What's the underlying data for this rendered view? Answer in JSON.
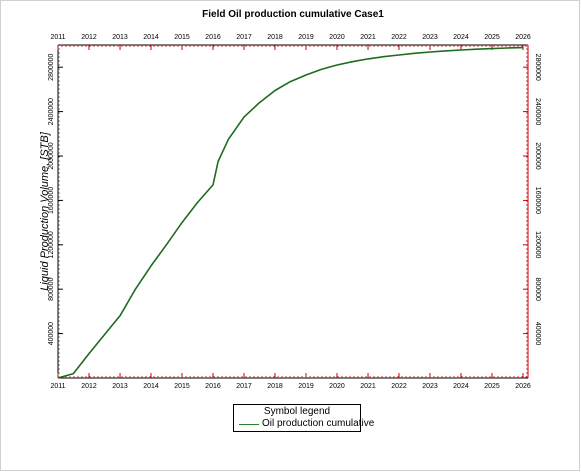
{
  "colors": {
    "series": "#1f6b1f",
    "axis_right": "#cc0000",
    "axis": "#000000"
  },
  "legend": {
    "title": "Symbol legend",
    "entries": [
      "Oil production cumulative"
    ]
  },
  "chart_data": {
    "type": "line",
    "title": "Field Oil production cumulative Case1",
    "xlabel": "",
    "ylabel": "Liquid Production Volume, [STB]",
    "xlim": [
      "2011-01-01",
      "2026-03-01"
    ],
    "ylim": [
      0,
      3000000
    ],
    "x_ticks": [
      "2011",
      "2012",
      "2013",
      "2014",
      "2015",
      "2016",
      "2017",
      "2018",
      "2019",
      "2020",
      "2021",
      "2022",
      "2023",
      "2024",
      "2025",
      "2026"
    ],
    "y_ticks": [
      400000,
      800000,
      1200000,
      1600000,
      2000000,
      2400000,
      2800000
    ],
    "y_tick_labels": [
      "400000",
      "800000",
      "1200000",
      "1600000",
      "2000000",
      "2400000",
      "2800000"
    ],
    "grid": false,
    "legend_position": "bottom-center",
    "series": [
      {
        "name": "Oil production cumulative",
        "x": [
          "2011-01-01",
          "2011-07-01",
          "2012-01-01",
          "2012-07-01",
          "2013-01-01",
          "2013-07-01",
          "2014-01-01",
          "2014-07-01",
          "2015-01-01",
          "2015-07-01",
          "2016-01-01",
          "2016-03-01",
          "2016-07-01",
          "2017-01-01",
          "2017-07-01",
          "2018-01-01",
          "2018-07-01",
          "2019-01-01",
          "2019-07-01",
          "2020-01-01",
          "2020-07-01",
          "2021-01-01",
          "2021-07-01",
          "2022-01-01",
          "2022-07-01",
          "2023-01-01",
          "2023-07-01",
          "2024-01-01",
          "2024-07-01",
          "2025-01-01",
          "2025-07-01",
          "2026-01-01"
        ],
        "values": [
          0,
          40000,
          220000,
          390000,
          560000,
          800000,
          1010000,
          1200000,
          1400000,
          1580000,
          1740000,
          1950000,
          2150000,
          2350000,
          2480000,
          2590000,
          2670000,
          2730000,
          2780000,
          2820000,
          2850000,
          2875000,
          2895000,
          2910000,
          2925000,
          2937000,
          2947000,
          2955000,
          2962000,
          2968000,
          2973000,
          2977000
        ]
      }
    ]
  }
}
